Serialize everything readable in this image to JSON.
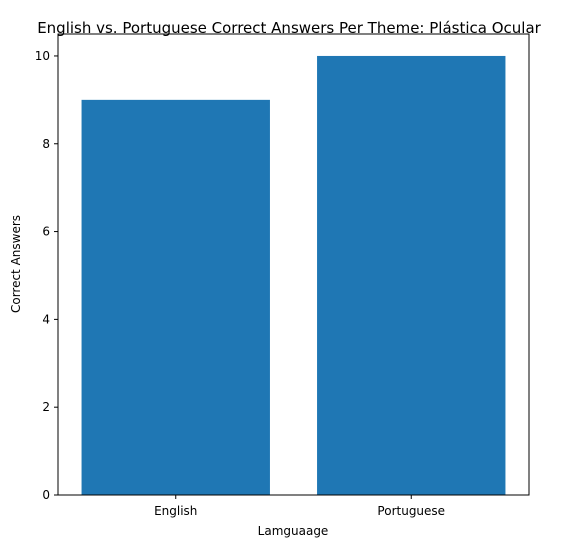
{
  "chart_data": {
    "type": "bar",
    "title": "English vs. Portuguese Correct Answers Per Theme: Plástica Ocular",
    "xlabel": "Lamguaage",
    "ylabel": "Correct Answers",
    "categories": [
      "English",
      "Portuguese"
    ],
    "values": [
      9,
      10
    ],
    "ylim": [
      0,
      10.5
    ],
    "yticks": [
      "0",
      "2",
      "4",
      "6",
      "8",
      "10"
    ],
    "bar_color": "#1f77b4",
    "grid": false,
    "legend": "none"
  }
}
